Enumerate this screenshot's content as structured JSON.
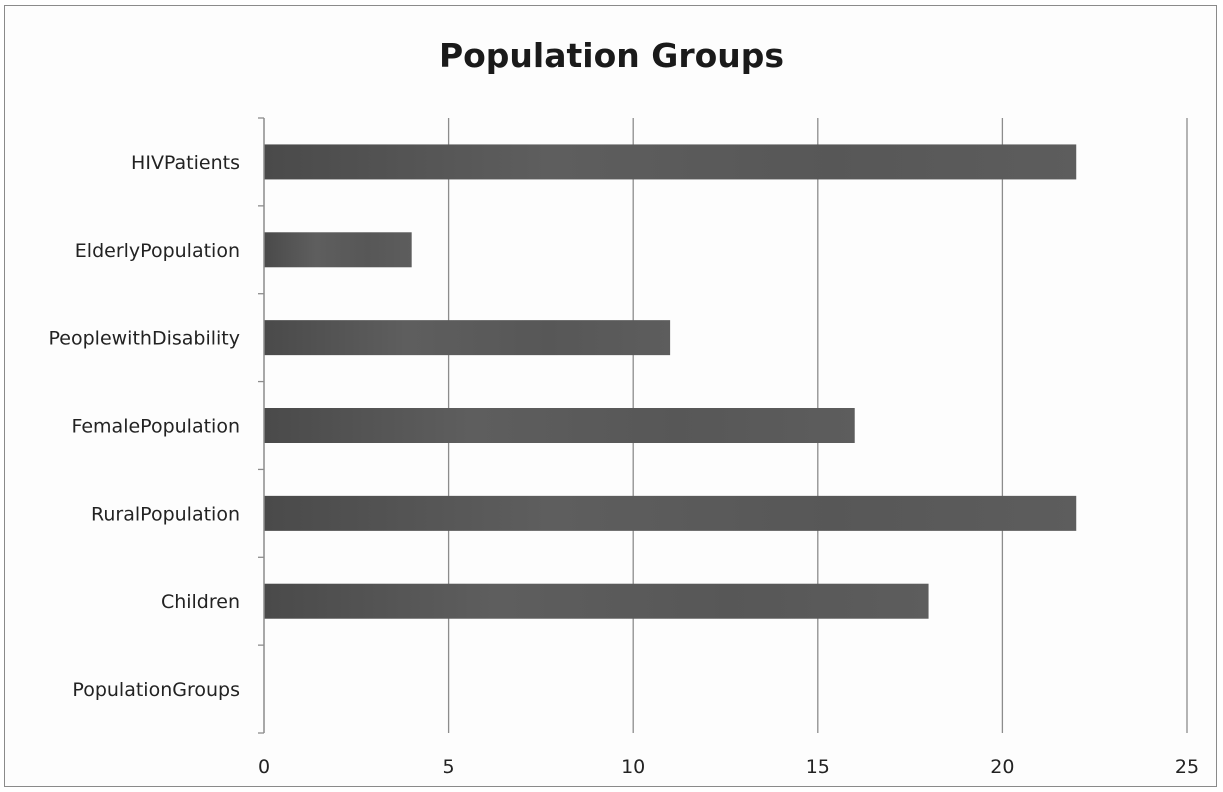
{
  "chart_data": {
    "type": "bar",
    "orientation": "horizontal",
    "title": "Population Groups",
    "categories": [
      "PopulationGroups",
      "Children",
      "RuralPopulation",
      "FemalePopulation",
      "PeoplewithDisability",
      "ElderlyPopulation",
      "HIVPatients"
    ],
    "values": [
      null,
      18,
      22,
      16,
      11,
      4,
      22
    ],
    "xlim": [
      0,
      25
    ],
    "xticks": [
      "0",
      "5",
      "10",
      "15",
      "20",
      "25"
    ],
    "grid": true,
    "colors": {
      "bar": "#555555",
      "grid": "#8c8c8c",
      "axis": "#8c8c8c"
    }
  }
}
